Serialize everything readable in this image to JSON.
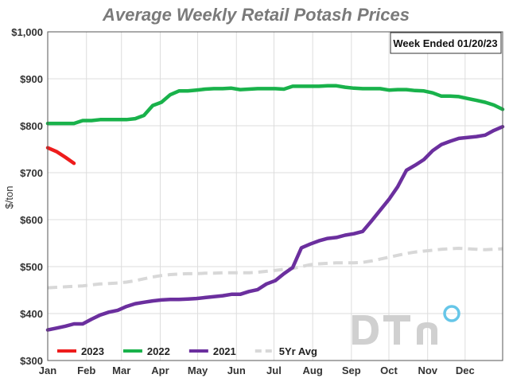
{
  "chart_data": {
    "type": "line",
    "title": "Average Weekly Retail Potash Prices",
    "annotation": "Week Ended 01/20/23",
    "ylabel": "$/ton",
    "xlabel": "",
    "ylim": [
      300,
      1000
    ],
    "yticks": [
      300,
      400,
      500,
      600,
      700,
      800,
      900,
      1000
    ],
    "ytick_labels": [
      "$300",
      "$400",
      "$500",
      "$600",
      "$700",
      "$800",
      "$900",
      "$1,000"
    ],
    "xlim": [
      0,
      52
    ],
    "months": [
      "Jan",
      "Feb",
      "Mar",
      "Apr",
      "May",
      "Jun",
      "Jul",
      "Aug",
      "Sep",
      "Oct",
      "Nov",
      "Dec"
    ],
    "month_weeks": [
      0,
      4.43,
      8.43,
      12.86,
      17.14,
      21.57,
      25.86,
      30.29,
      34.71,
      39,
      43.43,
      47.71
    ],
    "grid": true,
    "legend_position": "bottom-left",
    "series": [
      {
        "name": "2023",
        "color": "#ee1c1c",
        "dashed": false,
        "x": [
          0,
          1,
          2,
          3
        ],
        "y": [
          753,
          745,
          733,
          720
        ]
      },
      {
        "name": "2022",
        "color": "#19b24b",
        "dashed": false,
        "x": [
          0,
          1,
          2,
          3,
          4,
          5,
          6,
          7,
          8,
          9,
          10,
          11,
          12,
          13,
          14,
          15,
          16,
          17,
          18,
          19,
          20,
          21,
          22,
          23,
          24,
          25,
          26,
          27,
          28,
          29,
          30,
          31,
          32,
          33,
          34,
          35,
          36,
          37,
          38,
          39,
          40,
          41,
          42,
          43,
          44,
          45,
          46,
          47,
          48,
          49,
          50,
          51,
          52
        ],
        "y": [
          805,
          805,
          805,
          805,
          811,
          811,
          813,
          813,
          813,
          813,
          815,
          822,
          843,
          850,
          866,
          874,
          874,
          876,
          878,
          879,
          879,
          880,
          877,
          878,
          879,
          879,
          879,
          878,
          884,
          884,
          884,
          884,
          885,
          885,
          882,
          880,
          879,
          879,
          879,
          876,
          877,
          877,
          875,
          874,
          870,
          863,
          863,
          862,
          858,
          854,
          850,
          844,
          835
        ]
      },
      {
        "name": "2021",
        "color": "#6b2f9e",
        "dashed": false,
        "x": [
          0,
          1,
          2,
          3,
          4,
          5,
          6,
          7,
          8,
          9,
          10,
          11,
          12,
          13,
          14,
          15,
          16,
          17,
          18,
          19,
          20,
          21,
          22,
          23,
          24,
          25,
          26,
          27,
          28,
          29,
          30,
          31,
          32,
          33,
          34,
          35,
          36,
          37,
          38,
          39,
          40,
          41,
          42,
          43,
          44,
          45,
          46,
          47,
          48,
          49,
          50,
          51,
          52
        ],
        "y": [
          365,
          369,
          373,
          378,
          378,
          388,
          397,
          403,
          407,
          415,
          421,
          424,
          427,
          429,
          430,
          430,
          431,
          432,
          434,
          436,
          438,
          441,
          441,
          447,
          451,
          463,
          470,
          485,
          498,
          540,
          548,
          555,
          560,
          562,
          567,
          570,
          575,
          597,
          620,
          643,
          670,
          705,
          716,
          728,
          747,
          760,
          767,
          773,
          775,
          777,
          780,
          790,
          798
        ]
      },
      {
        "name": "5Yr Avg",
        "color": "#d8d8d8",
        "dashed": true,
        "x": [
          0,
          1,
          2,
          3,
          4,
          5,
          6,
          7,
          8,
          9,
          10,
          11,
          12,
          13,
          14,
          15,
          16,
          17,
          18,
          19,
          20,
          21,
          22,
          23,
          24,
          25,
          26,
          27,
          28,
          29,
          30,
          31,
          32,
          33,
          34,
          35,
          36,
          37,
          38,
          39,
          40,
          41,
          42,
          43,
          44,
          45,
          46,
          47,
          48,
          49,
          50,
          51,
          52
        ],
        "y": [
          455,
          456,
          457,
          458,
          459,
          461,
          463,
          464,
          465,
          467,
          470,
          474,
          478,
          481,
          483,
          484,
          485,
          485,
          486,
          486,
          487,
          487,
          487,
          487,
          488,
          490,
          492,
          494,
          496,
          500,
          504,
          506,
          507,
          508,
          508,
          508,
          509,
          512,
          516,
          520,
          524,
          528,
          531,
          533,
          535,
          537,
          538,
          539,
          538,
          537,
          536,
          537,
          538
        ]
      }
    ]
  },
  "watermark": {
    "brand": "DTN"
  }
}
